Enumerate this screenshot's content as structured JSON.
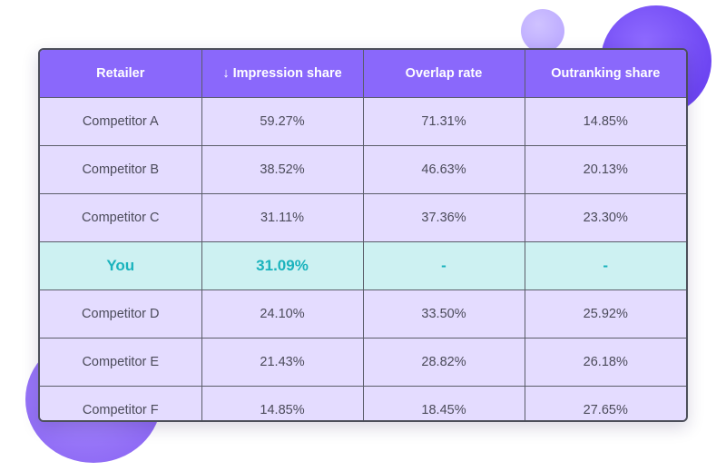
{
  "table": {
    "headers": [
      "Retailer",
      "↓ Impression share",
      "Overlap rate",
      "Outranking share"
    ],
    "rows": [
      [
        "Competitor A",
        "59.27%",
        "71.31%",
        "14.85%"
      ],
      [
        "Competitor B",
        "38.52%",
        "46.63%",
        "20.13%"
      ],
      [
        "Competitor C",
        "31.11%",
        "37.36%",
        "23.30%"
      ],
      [
        "You",
        "31.09%",
        "-",
        "-"
      ],
      [
        "Competitor D",
        "24.10%",
        "33.50%",
        "25.92%"
      ],
      [
        "Competitor E",
        "21.43%",
        "28.82%",
        "26.18%"
      ],
      [
        "Competitor F",
        "14.85%",
        "18.45%",
        "27.65%"
      ]
    ],
    "highlight_row": 3
  },
  "colors": {
    "header_bg": "#8a68fb",
    "row_bg": "#e4dcff",
    "highlight_bg": "#cdf1f2",
    "highlight_text": "#1ab3bd"
  }
}
